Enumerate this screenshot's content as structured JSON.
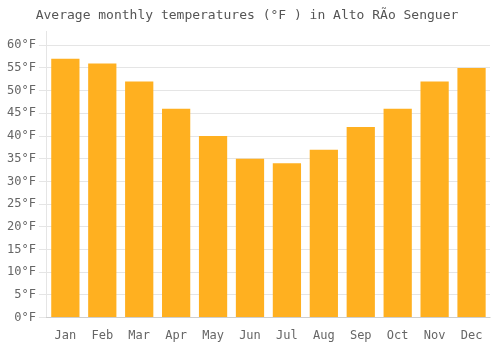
{
  "chart_data": {
    "type": "bar",
    "title": "Average monthly temperatures (°F ) in Alto RÃ­o Senguer",
    "categories": [
      "Jan",
      "Feb",
      "Mar",
      "Apr",
      "May",
      "Jun",
      "Jul",
      "Aug",
      "Sep",
      "Oct",
      "Nov",
      "Dec"
    ],
    "values": [
      57,
      56,
      52,
      46,
      40,
      35,
      34,
      37,
      42,
      46,
      52,
      55
    ],
    "color": "#FFB020",
    "ylim": [
      0,
      63
    ],
    "yticks": [
      {
        "value": 0,
        "label": "0°F"
      },
      {
        "value": 5,
        "label": "5°F"
      },
      {
        "value": 10,
        "label": "10°F"
      },
      {
        "value": 15,
        "label": "15°F"
      },
      {
        "value": 20,
        "label": "20°F"
      },
      {
        "value": 25,
        "label": "25°F"
      },
      {
        "value": 30,
        "label": "30°F"
      },
      {
        "value": 35,
        "label": "35°F"
      },
      {
        "value": 40,
        "label": "40°F"
      },
      {
        "value": 45,
        "label": "45°F"
      },
      {
        "value": 50,
        "label": "50°F"
      },
      {
        "value": 55,
        "label": "55°F"
      },
      {
        "value": 60,
        "label": "60°F"
      }
    ],
    "grid": true
  }
}
